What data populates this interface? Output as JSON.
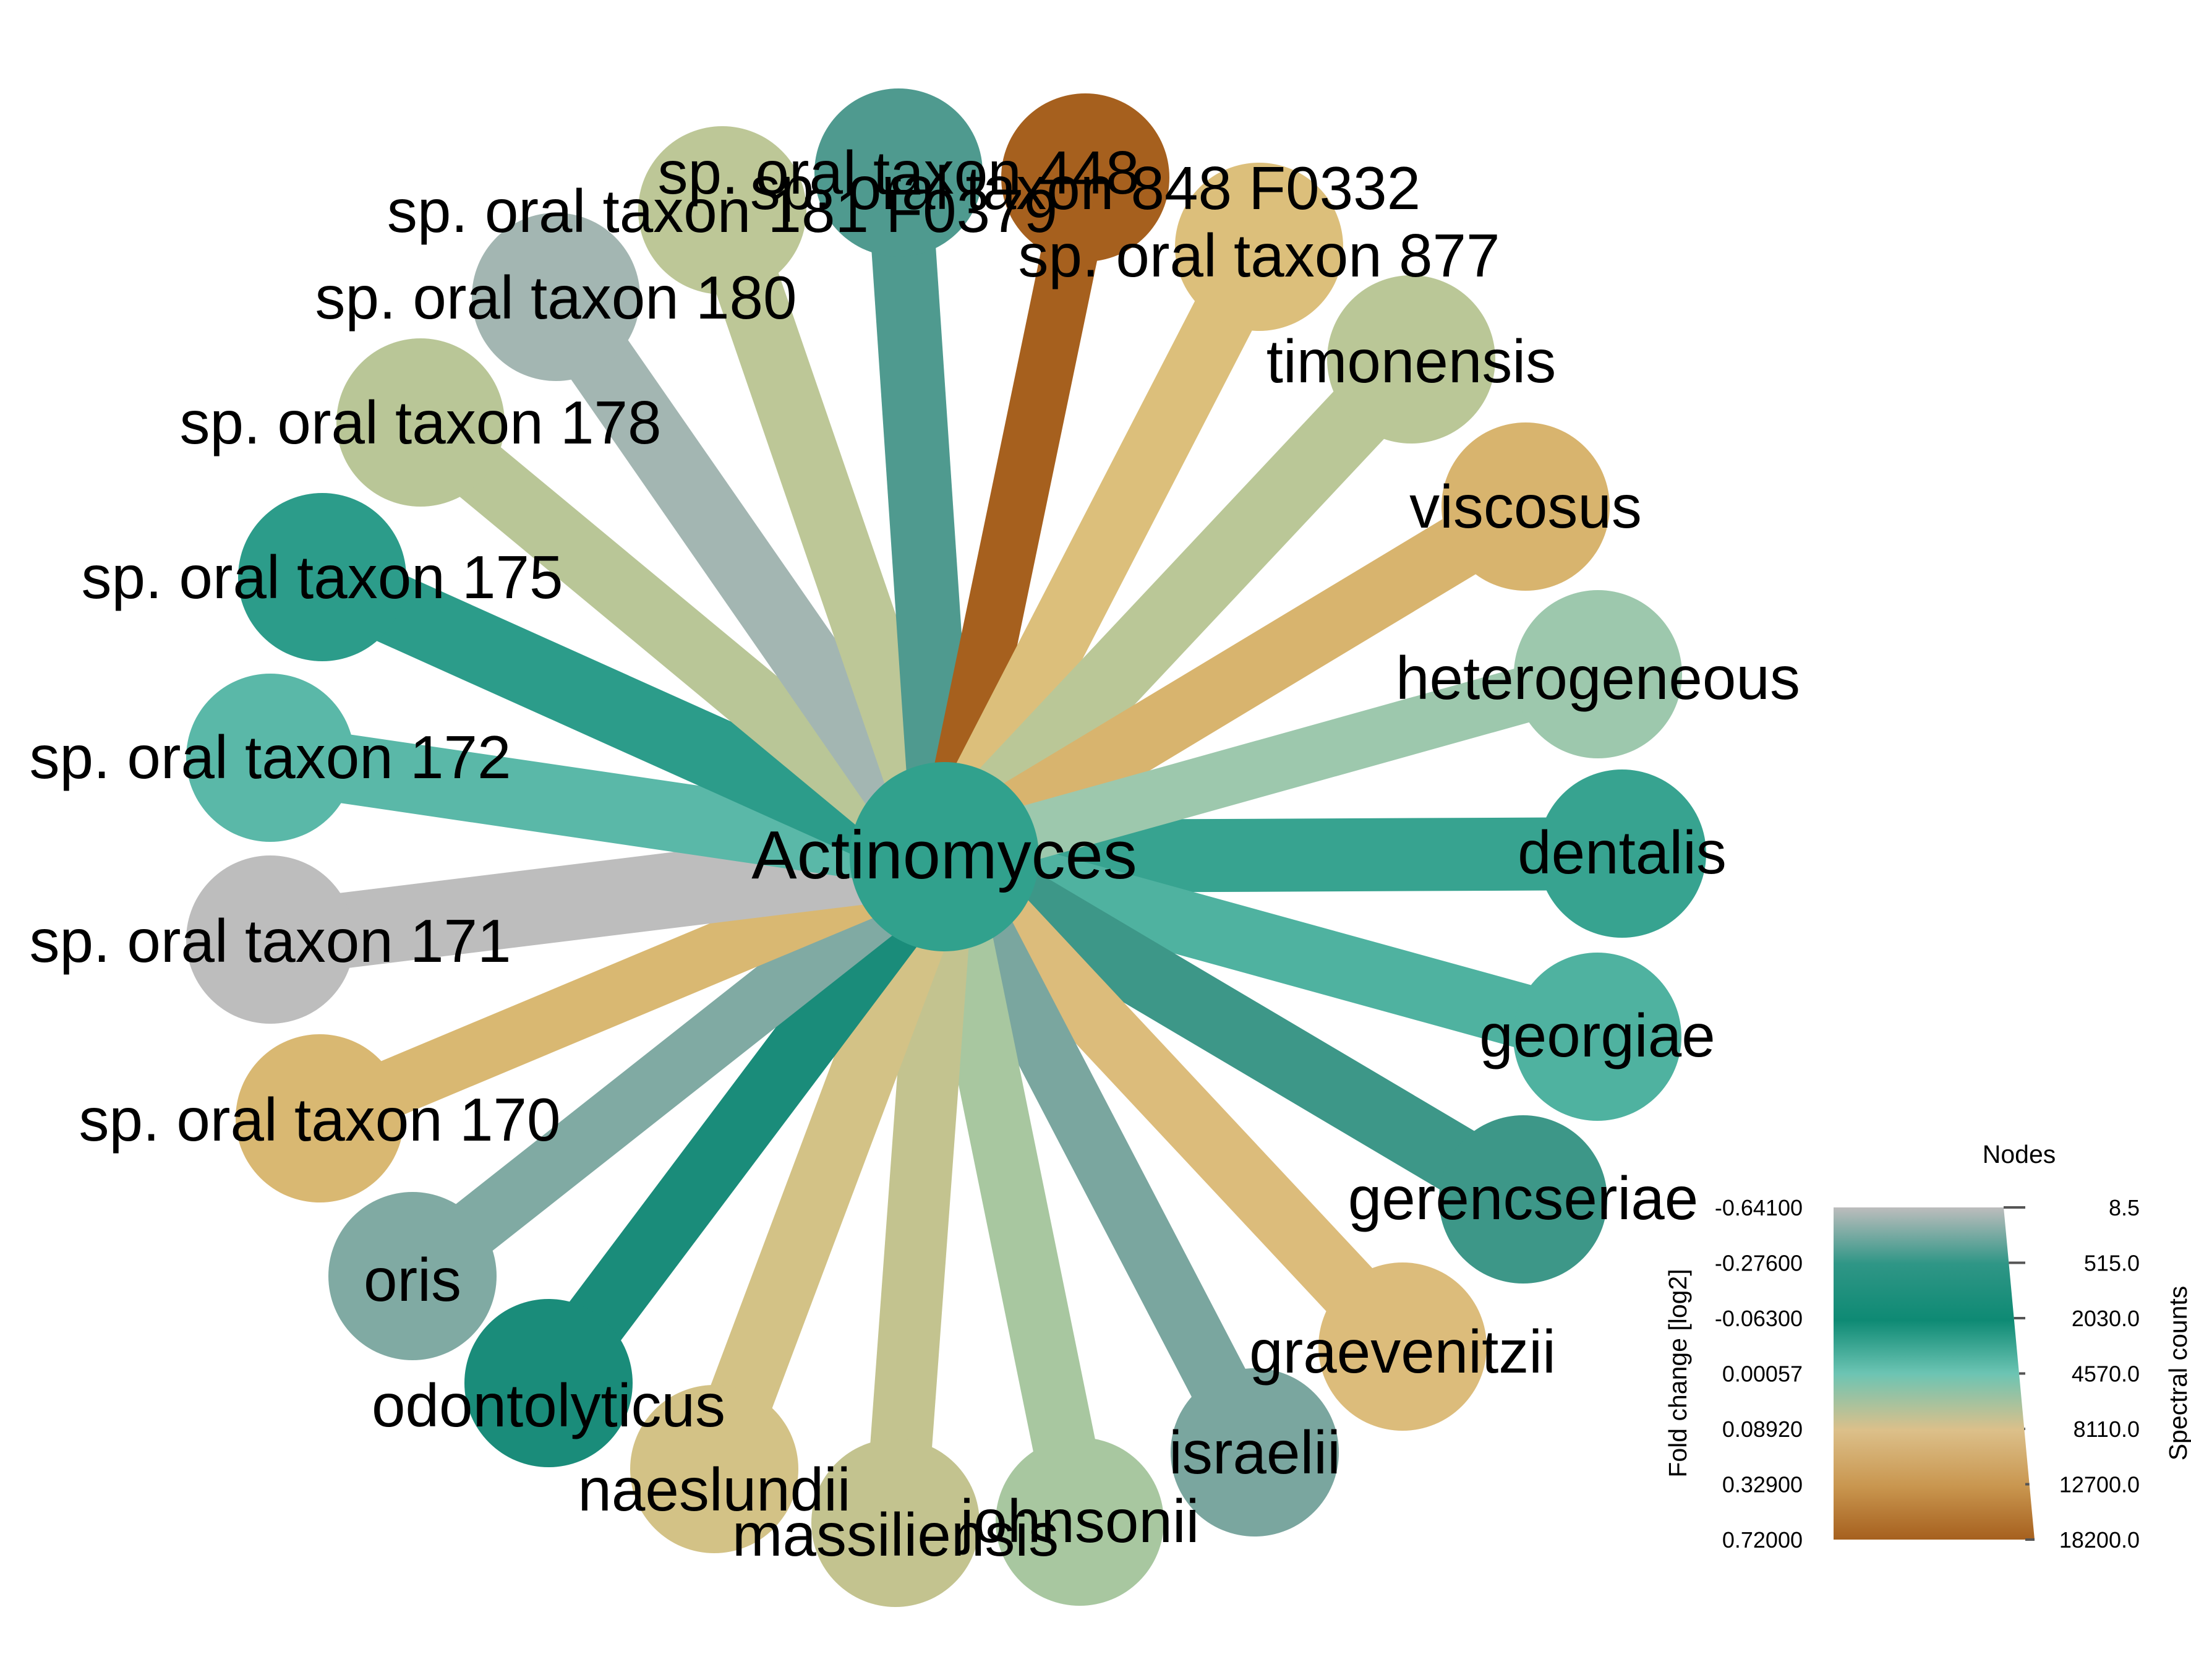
{
  "center": {
    "label": "Actinomyces",
    "color": "#31a18d"
  },
  "nodes": [
    {
      "label": "dentalis",
      "color": "#37a390"
    },
    {
      "label": "georgiae",
      "color": "#4fb2a0"
    },
    {
      "label": "gerencseriae",
      "color": "#3d9788"
    },
    {
      "label": "graevenitzii",
      "color": "#dcbc7b"
    },
    {
      "label": "israelii",
      "color": "#7aa69f"
    },
    {
      "label": "johnsonii",
      "color": "#a8c7a0"
    },
    {
      "label": "massiliensis",
      "color": "#c3c38f"
    },
    {
      "label": "naeslundii",
      "color": "#d3c286"
    },
    {
      "label": "odontolyticus",
      "color": "#1a8c7a"
    },
    {
      "label": "oris",
      "color": "#80aaa3"
    },
    {
      "label": "sp. oral taxon 170",
      "color": "#d9b872"
    },
    {
      "label": "sp. oral taxon 171",
      "color": "#bdbdbd"
    },
    {
      "label": "sp. oral taxon 172",
      "color": "#5ab8a8"
    },
    {
      "label": "sp. oral taxon 175",
      "color": "#2c9c8a"
    },
    {
      "label": "sp. oral taxon 178",
      "color": "#b9c697"
    },
    {
      "label": "sp. oral taxon 180",
      "color": "#a3b6b2"
    },
    {
      "label": "sp. oral taxon 181 F0379",
      "color": "#bdc797"
    },
    {
      "label": "sp. oral taxon 448",
      "color": "#4f9a8f"
    },
    {
      "label": "sp. oral taxon 848 F0332",
      "color": "#a6601e"
    },
    {
      "label": "sp. oral taxon 877",
      "color": "#dcbf7b"
    },
    {
      "label": "timonensis",
      "color": "#bac797"
    },
    {
      "label": "viscosus",
      "color": "#d8b46e"
    },
    {
      "label": "heterogeneous",
      "color": "#9dc8ad"
    }
  ],
  "legend": {
    "title": "Nodes",
    "left_axis_label": "Fold change [log2]",
    "right_axis_label": "Spectral counts",
    "left_ticks": [
      "-0.64100",
      "-0.27600",
      "-0.06300",
      "0.00057",
      "0.08920",
      "0.32900",
      "0.72000"
    ],
    "right_ticks": [
      "8.5",
      "515.0",
      "2030.0",
      "4570.0",
      "8110.0",
      "12700.0",
      "18200.0"
    ],
    "gradient_colors": [
      "#bdbdbd",
      "#2f9686",
      "#0e8a74",
      "#6cc4b3",
      "#dcc08a",
      "#c9964f",
      "#a6601e"
    ]
  }
}
